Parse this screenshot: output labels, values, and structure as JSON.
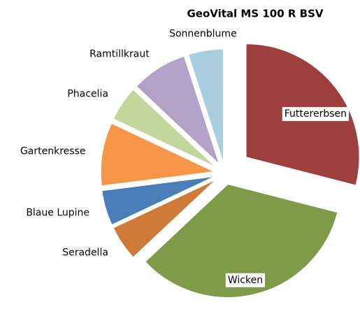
{
  "chart_data": {
    "type": "pie",
    "title": "GeoVital MS 100 R  BSV",
    "categories": [
      "Futtererbsen",
      "Wicken",
      "Seradella",
      "Blaue Lupine",
      "Gartenkresse",
      "Phacelia",
      "Ramtillkraut",
      "Sonnenblume"
    ],
    "values": [
      29,
      34,
      5,
      5,
      9,
      5,
      8,
      5
    ],
    "colors": [
      "#a0403e",
      "#7f9a48",
      "#d07a38",
      "#4a7ebb",
      "#f79646",
      "#c3d69b",
      "#b3a2c7",
      "#a9cee0"
    ]
  }
}
